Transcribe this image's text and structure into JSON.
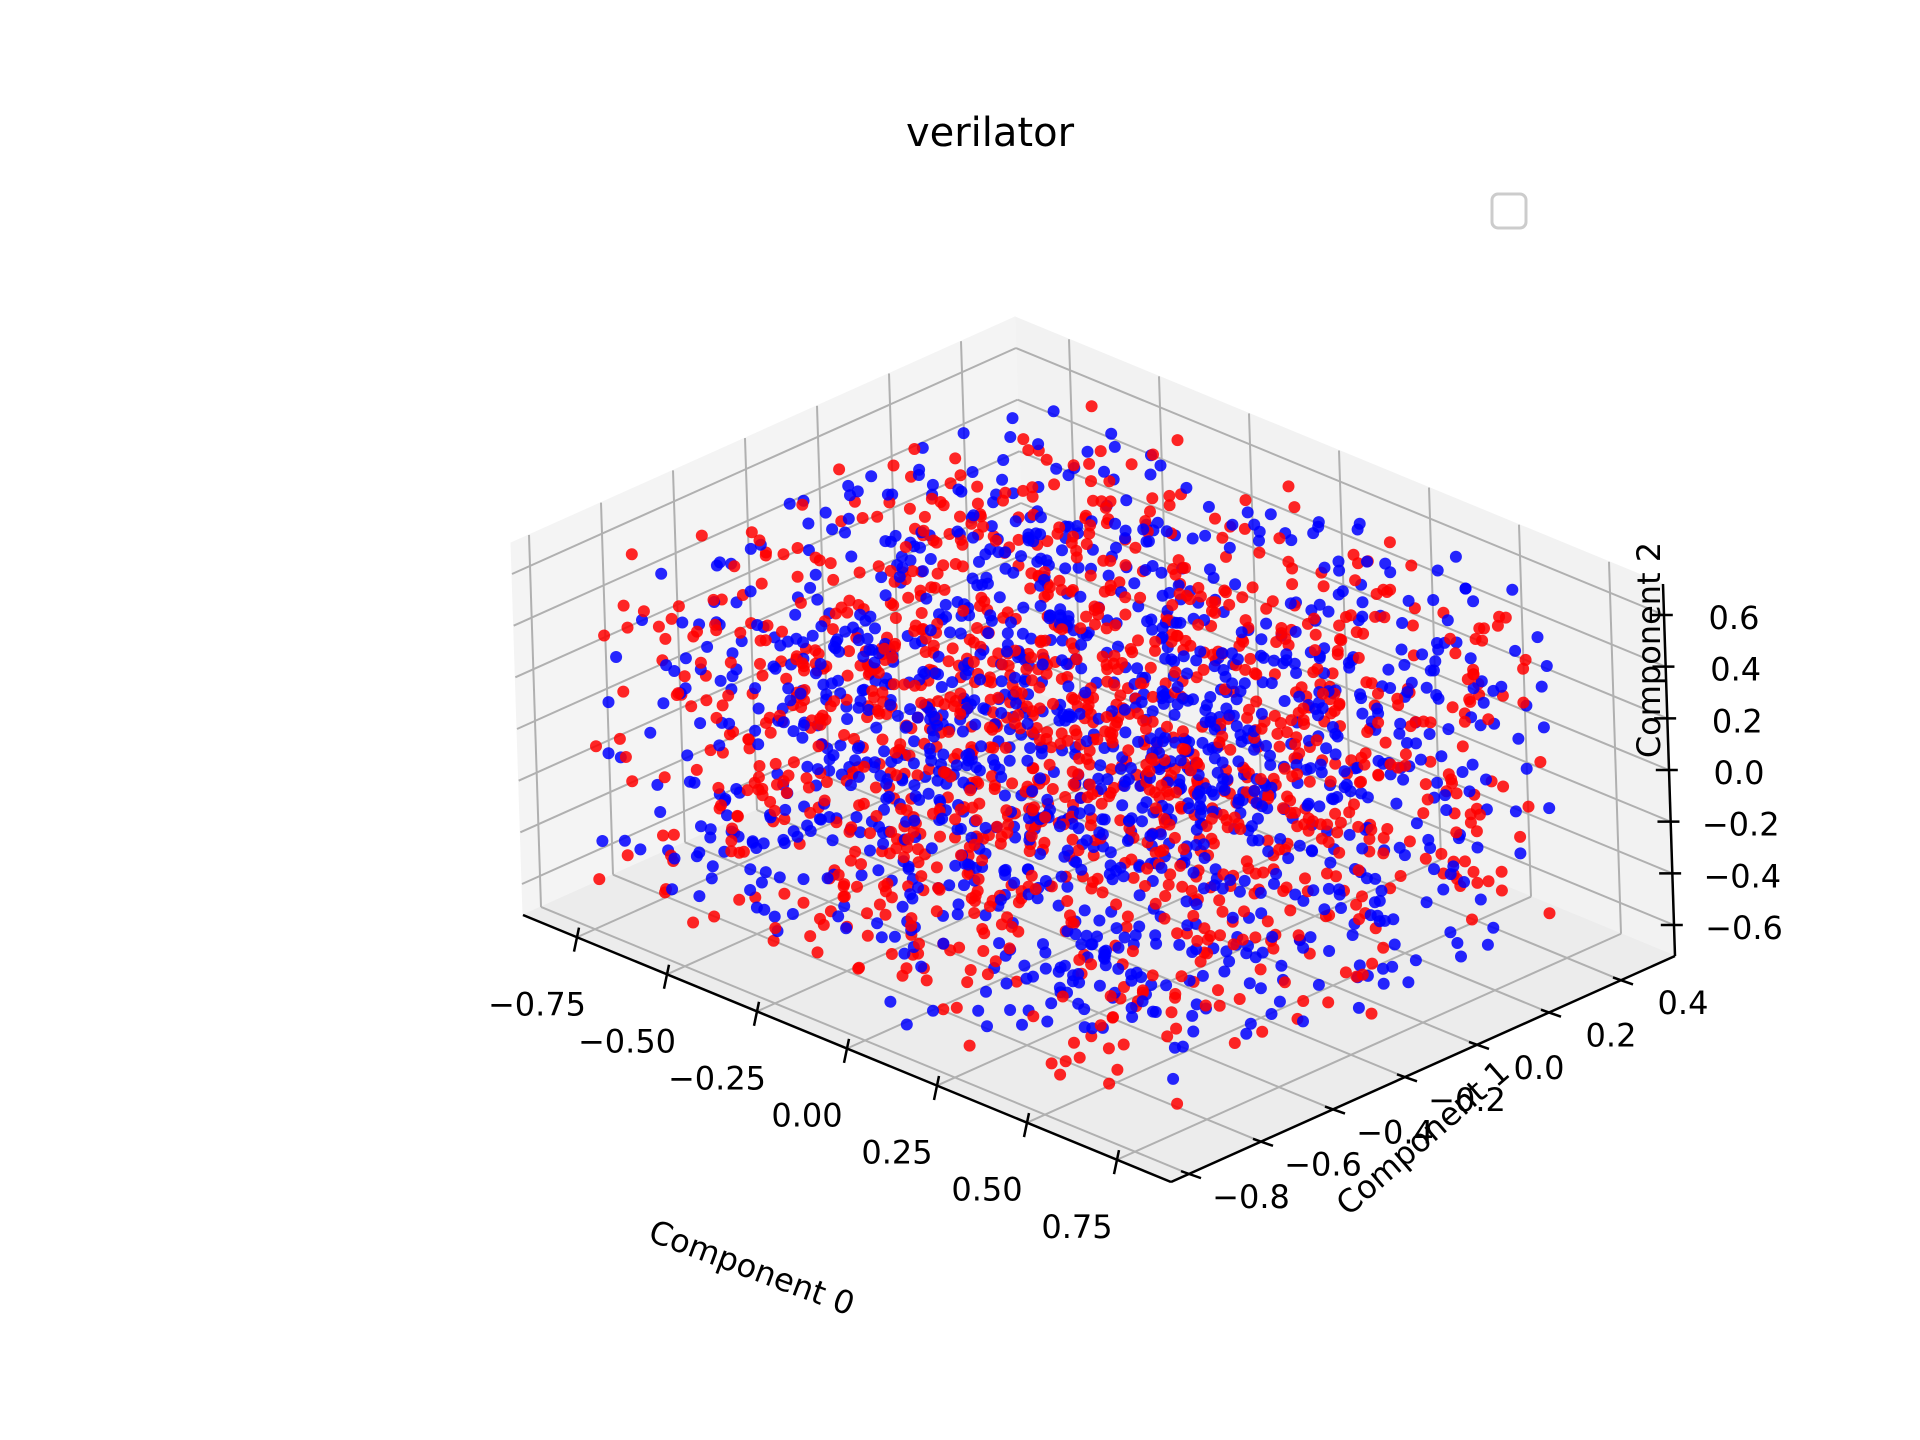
{
  "chart_data": {
    "type": "scatter3d",
    "title": "verilator",
    "xlabel": "Component 0",
    "ylabel": "Component 1",
    "zlabel": "Component 2",
    "xlim": [
      -0.9,
      0.9
    ],
    "ylim": [
      -0.85,
      0.55
    ],
    "zlim": [
      -0.72,
      0.72
    ],
    "xticks": [
      -0.75,
      -0.5,
      -0.25,
      0.0,
      0.25,
      0.5,
      0.75
    ],
    "xtick_labels": [
      "−0.75",
      "−0.50",
      "−0.25",
      "0.00",
      "0.25",
      "0.50",
      "0.75"
    ],
    "yticks": [
      -0.8,
      -0.6,
      -0.4,
      -0.2,
      0.0,
      0.2,
      0.4
    ],
    "ytick_labels": [
      "−0.8",
      "−0.6",
      "−0.4",
      "−0.2",
      "0.0",
      "0.2",
      "0.4"
    ],
    "zticks": [
      -0.6,
      -0.4,
      -0.2,
      0.0,
      0.2,
      0.4,
      0.6
    ],
    "ztick_labels": [
      "−0.6",
      "−0.4",
      "−0.2",
      "0.0",
      "0.2",
      "0.4",
      "0.6"
    ],
    "grid": true,
    "legend": {
      "placement": "upper right",
      "entries": []
    },
    "series": [
      {
        "color": "#0000ff",
        "x_range": [
          -0.75,
          0.75
        ],
        "y_range": [
          -0.8,
          0.45
        ],
        "z_range": [
          -0.62,
          0.68
        ]
      },
      {
        "color": "#ff0000",
        "x_range": [
          -0.75,
          0.75
        ],
        "y_range": [
          -0.8,
          0.45
        ],
        "z_range": [
          -0.62,
          0.68
        ]
      }
    ]
  }
}
